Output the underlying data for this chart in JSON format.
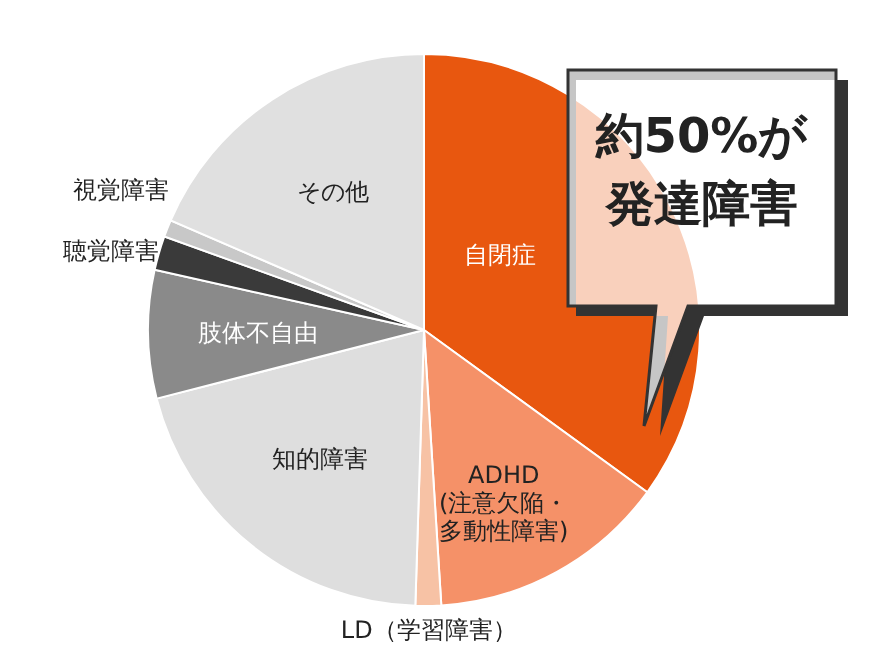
{
  "chart_data": {
    "type": "pie",
    "categories": [
      "自閉症",
      "ADHD(注意欠陥・多動性障害)",
      "LD（学習障害）",
      "知的障害",
      "肢体不自由",
      "聴覚障害",
      "視覚障害",
      "その他"
    ],
    "values": [
      35,
      14,
      1.5,
      20.5,
      7.5,
      2,
      1,
      18.5
    ],
    "colors": [
      "#e8570f",
      "#f59168",
      "#f7c2a5",
      "#dedede",
      "#8a8a8a",
      "#3a3a3a",
      "#c8c8c8",
      "#e0e0e0"
    ],
    "annotations": [
      "約50%が発達障害"
    ]
  }
}
